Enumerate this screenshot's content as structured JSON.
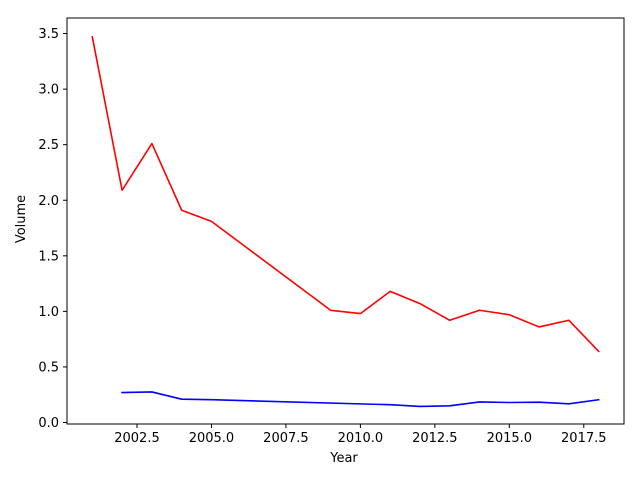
{
  "chart_data": {
    "type": "line",
    "title": "",
    "xlabel": "Year",
    "ylabel": "Volume",
    "xlim": [
      2000.15,
      2018.85
    ],
    "ylim": [
      -0.0134,
      3.64
    ],
    "x_ticks": [
      2002.5,
      2005.0,
      2007.5,
      2010.0,
      2012.5,
      2015.0,
      2017.5
    ],
    "x_tick_labels": [
      "2002.5",
      "2005.0",
      "2007.5",
      "2010.0",
      "2012.5",
      "2015.0",
      "2017.5"
    ],
    "y_ticks": [
      0.0,
      0.5,
      1.0,
      1.5,
      2.0,
      2.5,
      3.0,
      3.5
    ],
    "y_tick_labels": [
      "0.0",
      "0.5",
      "1.0",
      "1.5",
      "2.0",
      "2.5",
      "3.0",
      "3.5"
    ],
    "grid": false,
    "legend": "none",
    "series": [
      {
        "color": "#ff0000",
        "x": [
          2001,
          2002,
          2003,
          2004,
          2005,
          2009,
          2010,
          2011,
          2012,
          2013,
          2014,
          2015,
          2016,
          2017,
          2018
        ],
        "y": [
          3.47,
          2.09,
          2.51,
          1.91,
          1.81,
          1.01,
          0.98,
          1.18,
          1.07,
          0.92,
          1.01,
          0.97,
          0.86,
          0.92,
          0.64
        ]
      },
      {
        "color": "#0000ff",
        "x": [
          2002,
          2003,
          2004,
          2005,
          2011,
          2012,
          2013,
          2014,
          2015,
          2016,
          2017,
          2018
        ],
        "y": [
          0.27,
          0.275,
          0.21,
          0.205,
          0.16,
          0.145,
          0.15,
          0.185,
          0.18,
          0.183,
          0.168,
          0.205
        ]
      }
    ]
  }
}
